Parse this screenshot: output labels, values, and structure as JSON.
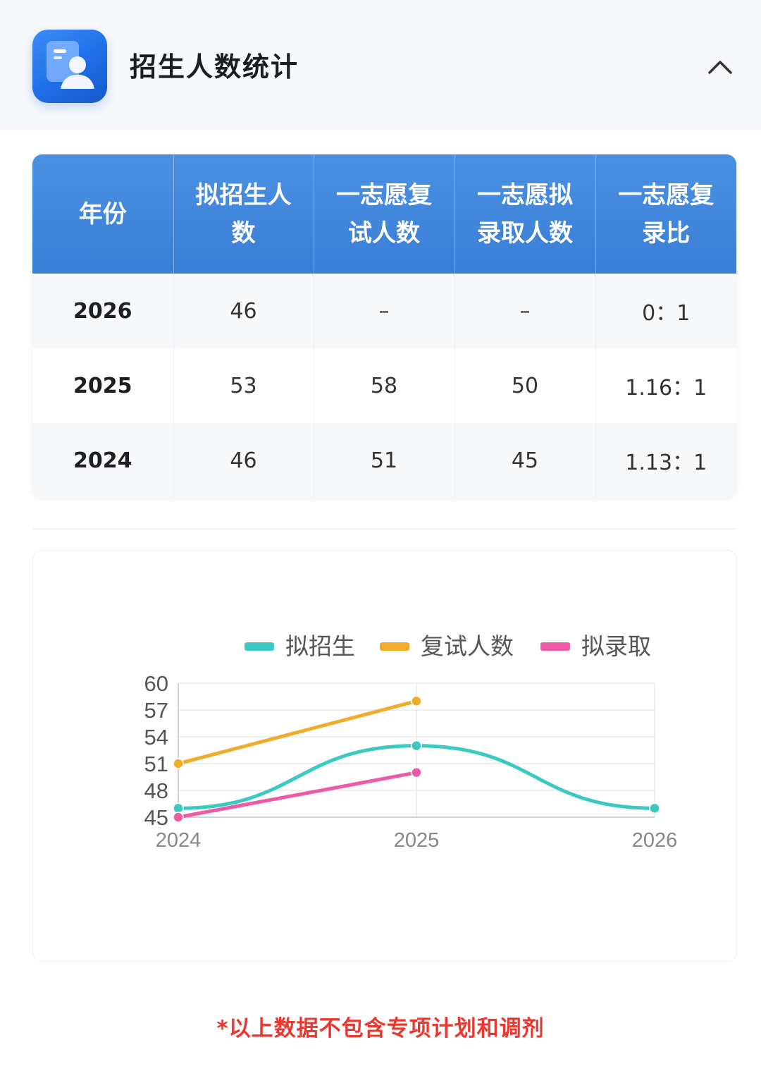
{
  "header": {
    "title": "招生人数统计",
    "icon": "profile-card-icon",
    "collapse_icon": "chevron-up-icon",
    "accent": "#2a74ea"
  },
  "table": {
    "headers": [
      "年份",
      "拟招生人数",
      "一志愿复试人数",
      "一志愿拟录取人数",
      "一志愿复录比"
    ],
    "rows": [
      [
        "2026",
        "46",
        "–",
        "–",
        "0：1"
      ],
      [
        "2025",
        "53",
        "58",
        "50",
        "1.16：1"
      ],
      [
        "2024",
        "46",
        "51",
        "45",
        "1.13：1"
      ]
    ],
    "header_color": "#3f86dc"
  },
  "chart_data": {
    "type": "line",
    "categories": [
      "2024",
      "2025",
      "2026"
    ],
    "series": [
      {
        "name": "拟招生",
        "values": [
          46,
          53,
          46
        ],
        "color": "#3cc9c2",
        "smooth": true
      },
      {
        "name": "复试人数",
        "values": [
          51,
          58,
          null
        ],
        "color": "#f0ac2a",
        "smooth": false
      },
      {
        "name": "拟录取",
        "values": [
          45,
          50,
          null
        ],
        "color": "#ee5aa6",
        "smooth": false
      }
    ],
    "yticks": [
      45,
      48,
      51,
      54,
      57,
      60
    ],
    "ylim": [
      45,
      60
    ],
    "grid": true,
    "legend_position": "top"
  },
  "footnote": "*以上数据不包含专项计划和调剂"
}
